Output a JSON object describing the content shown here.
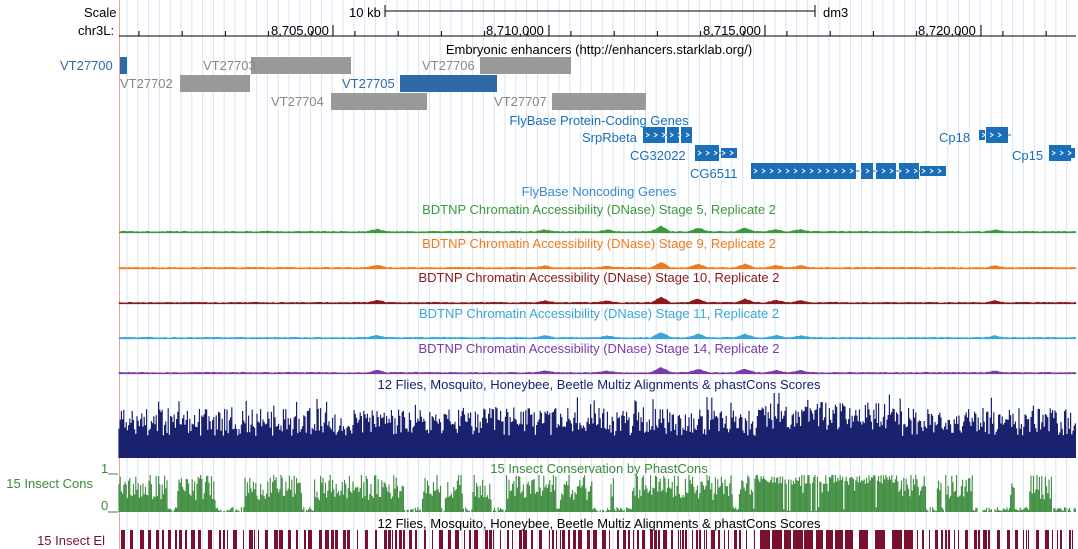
{
  "ruler": {
    "scale_label": "Scale",
    "chrom_label": "chr3L:",
    "scale_bar_text": "10 kb",
    "assembly": "dm3",
    "ticks": [
      "8,705,000",
      "8,710,000",
      "8,715,000",
      "8,720,000"
    ]
  },
  "tracks": {
    "enhancers": {
      "title": "Embryonic enhancers (http://enhancers.starklab.org/)",
      "items": [
        {
          "name": "VT27700",
          "highlighted": true
        },
        {
          "name": "VT27702",
          "highlighted": false
        },
        {
          "name": "VT27703",
          "highlighted": false
        },
        {
          "name": "VT27704",
          "highlighted": false
        },
        {
          "name": "VT27705",
          "highlighted": true
        },
        {
          "name": "VT27706",
          "highlighted": false
        },
        {
          "name": "VT27707",
          "highlighted": false
        }
      ]
    },
    "coding_genes": {
      "title": "FlyBase Protein-Coding Genes",
      "genes": [
        "SrpRbeta",
        "CG32022",
        "CG6511",
        "Cp18",
        "Cp15"
      ]
    },
    "noncoding_genes": {
      "title": "FlyBase Noncoding Genes"
    },
    "dnase": [
      {
        "title": "BDTNP Chromatin Accessibility (DNase) Stage 5, Replicate 2",
        "color": "#3a9a3a"
      },
      {
        "title": "BDTNP Chromatin Accessibility (DNase) Stage 9, Replicate 2",
        "color": "#f07a1a"
      },
      {
        "title": "BDTNP Chromatin Accessibility (DNase) Stage 10, Replicate 2",
        "color": "#8a1a1a"
      },
      {
        "title": "BDTNP Chromatin Accessibility (DNase) Stage 11, Replicate 2",
        "color": "#3aa6d8"
      },
      {
        "title": "BDTNP Chromatin Accessibility (DNase) Stage 14, Replicate 2",
        "color": "#7a3aa8"
      }
    ],
    "multiz": {
      "title": "12 Flies, Mosquito, Honeybee, Beetle Multiz Alignments & phastCons Scores",
      "color": "#1a2270"
    },
    "cons": {
      "title": "15 Insect Conservation by PhastCons",
      "side_label": "15 Insect Cons",
      "axis_max": "1",
      "axis_min": "0",
      "color": "#3a8a3a"
    },
    "elements": {
      "title": "12 Flies, Mosquito, Honeybee, Beetle Multiz Alignments & phastCons Scores",
      "side_label": "15 Insect El",
      "color": "#7a1030"
    }
  },
  "colors": {
    "enhancer_gray": "#999999",
    "enhancer_blue": "#2e69a8",
    "gene_blue": "#1a6fb8",
    "label_gray": "#888888",
    "label_blue": "#2e69a8"
  }
}
